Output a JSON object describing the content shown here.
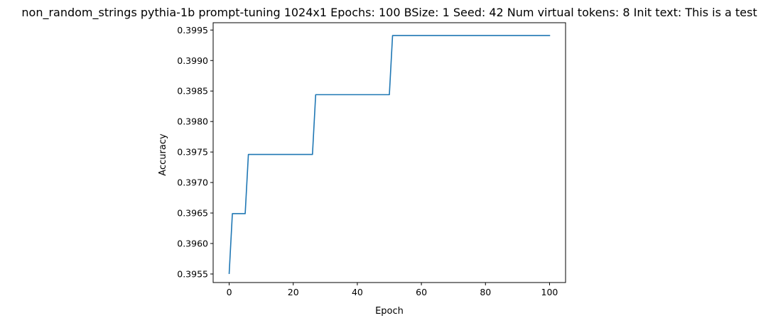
{
  "chart_data": {
    "type": "line",
    "title": "non_random_strings pythia-1b prompt-tuning 1024x1 Epochs: 100 BSize: 1 Seed: 42 Num virtual tokens: 8 Init text: This is a test",
    "xlabel": "Epoch",
    "ylabel": "Accuracy",
    "xlim": [
      -5,
      105
    ],
    "ylim": [
      0.39536,
      0.39962
    ],
    "xticks": [
      0,
      20,
      40,
      60,
      80,
      100
    ],
    "xtick_labels": [
      "0",
      "20",
      "40",
      "60",
      "80",
      "100"
    ],
    "yticks": [
      0.3955,
      0.396,
      0.3965,
      0.397,
      0.3975,
      0.398,
      0.3985,
      0.399,
      0.3995
    ],
    "ytick_labels": [
      "0.3955",
      "0.3960",
      "0.3965",
      "0.3970",
      "0.3975",
      "0.3980",
      "0.3985",
      "0.3990",
      "0.3995"
    ],
    "grid": false,
    "series": [
      {
        "color": "#1f77b4",
        "x": [
          0,
          1,
          5,
          6,
          26,
          27,
          50,
          51,
          100
        ],
        "y": [
          0.39551,
          0.39649,
          0.39649,
          0.39746,
          0.39746,
          0.39844,
          0.39844,
          0.39941,
          0.39941
        ]
      }
    ]
  }
}
